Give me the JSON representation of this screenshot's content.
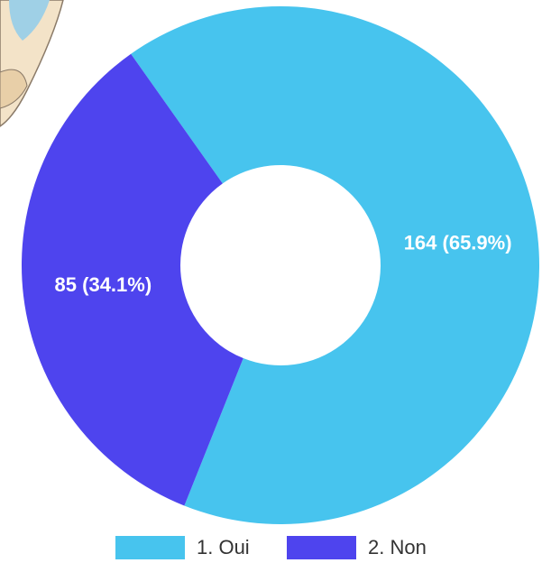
{
  "chart_data": {
    "type": "pie",
    "categories": [
      "1. Oui",
      "2. Non"
    ],
    "values": [
      164,
      85
    ],
    "value_labels": [
      "164 (65.9%)",
      "85 (34.1%)"
    ],
    "colors": [
      "#47c4ee",
      "#4e44ee"
    ],
    "legend": "bottom"
  }
}
